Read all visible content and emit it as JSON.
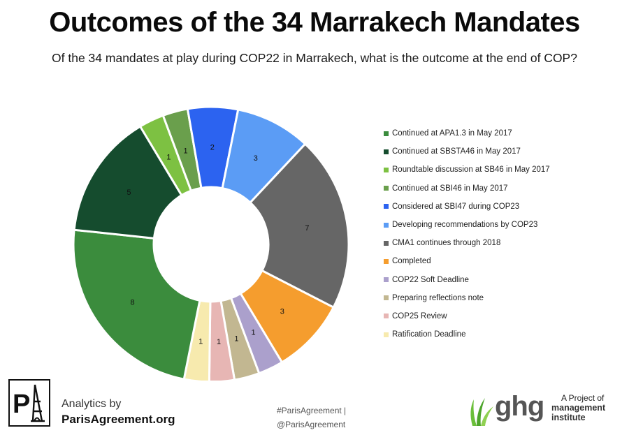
{
  "title": "Outcomes of the 34 Marrakech Mandates",
  "subtitle": "Of the 34 mandates at play during COP22 in Marrakech, what is the outcome at the end of COP?",
  "chart_data": {
    "type": "pie",
    "donut": true,
    "title": "Outcomes of the 34 Marrakech Mandates",
    "legend_position": "right",
    "slices": [
      {
        "label": "Roundtable discussion at SB46 in May 2017",
        "value": 1,
        "color": "#7dc142"
      },
      {
        "label": "Continued at SBI46 in May 2017",
        "value": 1,
        "color": "#6a9f4c"
      },
      {
        "label": "Considered at SBI47 during COP23",
        "value": 2,
        "color": "#2c63f0"
      },
      {
        "label": "Developing recommendations by COP23",
        "value": 3,
        "color": "#5b9cf5"
      },
      {
        "label": "CMA1 continues through 2018",
        "value": 7,
        "color": "#666666"
      },
      {
        "label": "Completed",
        "value": 3,
        "color": "#f59d2e"
      },
      {
        "label": "COP22 Soft Deadline",
        "value": 1,
        "color": "#aba0cc"
      },
      {
        "label": "Preparing reflections note",
        "value": 1,
        "color": "#c2b791"
      },
      {
        "label": "COP25 Review",
        "value": 1,
        "color": "#e7b6b4"
      },
      {
        "label": "Ratification Deadline",
        "value": 1,
        "color": "#f7eaae"
      },
      {
        "label": "Continued at APA1.3 in May 2017",
        "value": 8,
        "color": "#3b8c3d"
      },
      {
        "label": "Continued at SBSTA46 in May 2017",
        "value": 5,
        "color": "#154c2e"
      }
    ],
    "legend": [
      {
        "label": "Continued at APA1.3 in May 2017",
        "color": "#3b8c3d"
      },
      {
        "label": "Continued at SBSTA46 in May 2017",
        "color": "#154c2e"
      },
      {
        "label": "Roundtable discussion at SB46 in May 2017",
        "color": "#7dc142"
      },
      {
        "label": "Continued at SBI46 in May 2017",
        "color": "#6a9f4c"
      },
      {
        "label": "Considered at SBI47 during COP23",
        "color": "#2c63f0"
      },
      {
        "label": "Developing recommendations by COP23",
        "color": "#5b9cf5"
      },
      {
        "label": "CMA1 continues through 2018",
        "color": "#666666"
      },
      {
        "label": "Completed",
        "color": "#f59d2e"
      },
      {
        "label": "COP22 Soft Deadline",
        "color": "#aba0cc"
      },
      {
        "label": "Preparing reflections note",
        "color": "#c2b791"
      },
      {
        "label": "COP25 Review",
        "color": "#e7b6b4"
      },
      {
        "label": "Ratification Deadline",
        "color": "#f7eaae"
      }
    ]
  },
  "footer": {
    "logo_icon": "eiffel-tower-pa-logo",
    "analytics_by": "Analytics by",
    "site": "ParisAgreement.org",
    "hashtag": "#ParisAgreement |",
    "handle": "@ParisAgreement",
    "ghg_icon": "grass-leaf-icon",
    "ghg_text": "ghg",
    "project_of": "A Project of",
    "mgmt_line1": "management",
    "mgmt_line2": "institute"
  }
}
